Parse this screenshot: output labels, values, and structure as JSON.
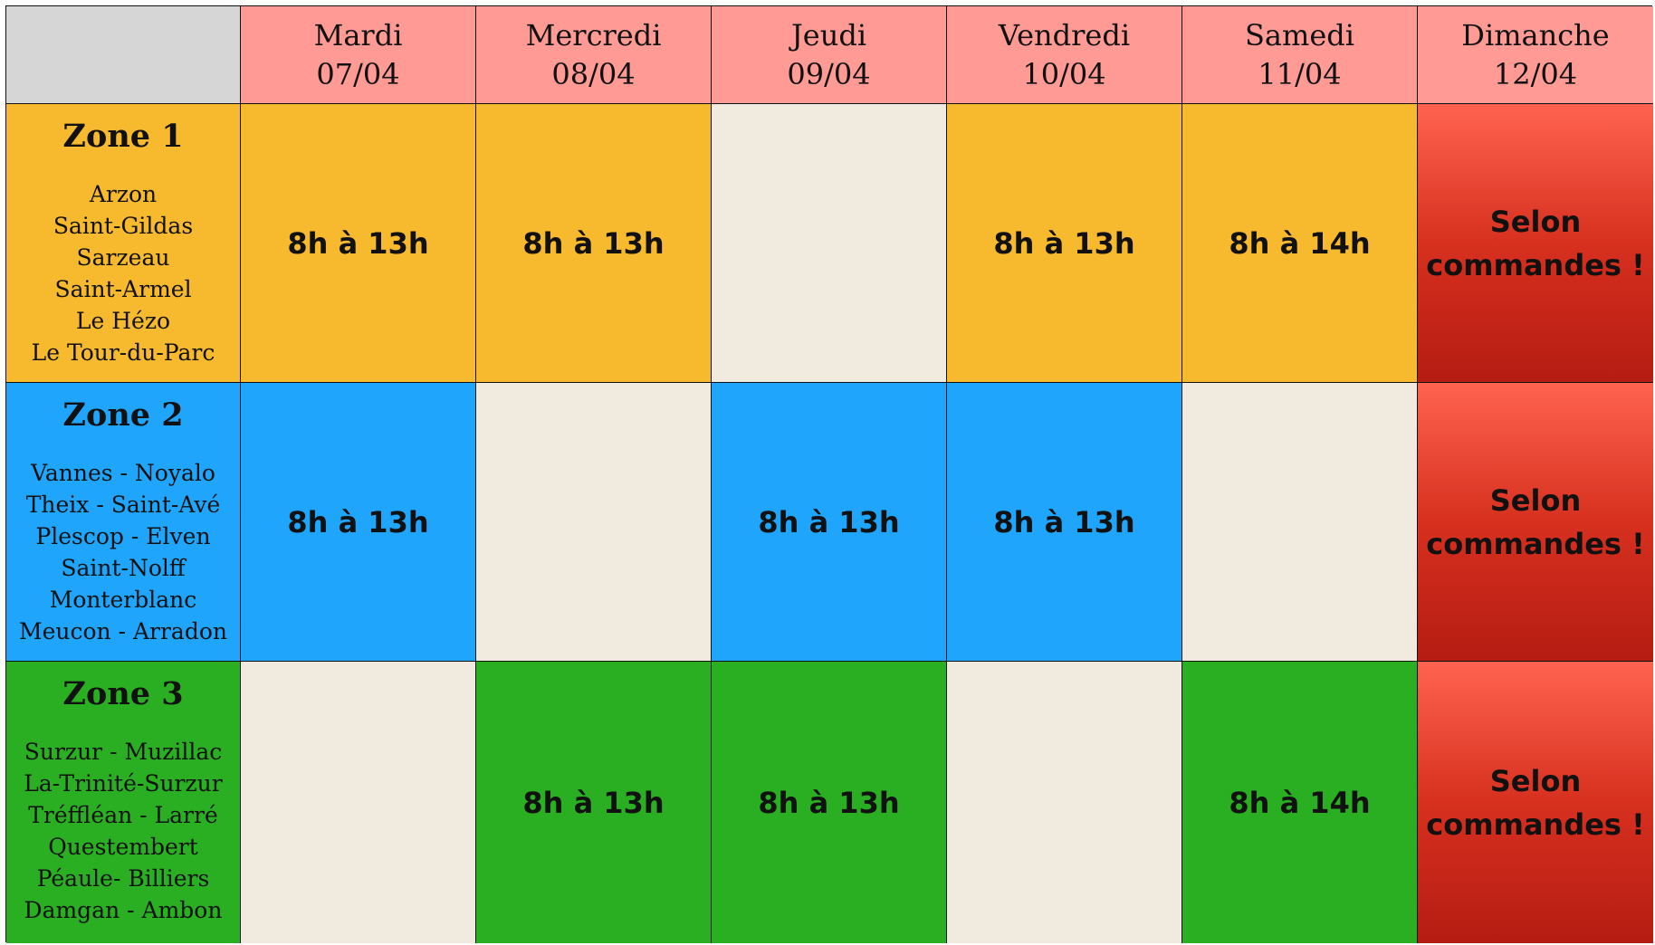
{
  "days": [
    {
      "name": "Mardi",
      "date": "07/04"
    },
    {
      "name": "Mercredi",
      "date": "08/04"
    },
    {
      "name": "Jeudi",
      "date": "09/04"
    },
    {
      "name": "Vendredi",
      "date": "10/04"
    },
    {
      "name": "Samedi",
      "date": "11/04"
    },
    {
      "name": "Dimanche",
      "date": "12/04"
    }
  ],
  "zones": [
    {
      "title": "Zone 1",
      "color": "#f7b92d",
      "towns": [
        "Arzon",
        "Saint-Gildas",
        "Sarzeau",
        "Saint-Armel",
        "Le Hézo",
        "Le Tour-du-Parc"
      ],
      "slots": [
        "8h à 13h",
        "8h à 13h",
        "",
        "8h à 13h",
        "8h à 14h",
        "Selon|commandes !"
      ]
    },
    {
      "title": "Zone 2",
      "color": "#1fa5fc",
      "towns": [
        "Vannes - Noyalo",
        "Theix - Saint-Avé",
        "Plescop - Elven",
        "Saint-Nolff",
        "Monterblanc",
        "Meucon - Arradon"
      ],
      "slots": [
        "8h à 13h",
        "",
        "8h à 13h",
        "8h à 13h",
        "",
        "Selon|commandes !"
      ]
    },
    {
      "title": "Zone 3",
      "color": "#2aae22",
      "towns": [
        "Surzur - Muzillac",
        "La-Trinité-Surzur",
        "Tréffléan - Larré",
        "Questembert",
        "Péaule- Billiers",
        "Damgan - Ambon"
      ],
      "slots": [
        "",
        "8h à 13h",
        "8h à 13h",
        "",
        "8h à 14h",
        "Selon|commandes !"
      ]
    }
  ],
  "colors": {
    "header": "#ff9a94",
    "corner": "#d6d6d6",
    "empty": "#f1ebdf",
    "order": "#d7301f"
  },
  "order_text": {
    "line1": "Selon",
    "line2": "commandes !"
  }
}
